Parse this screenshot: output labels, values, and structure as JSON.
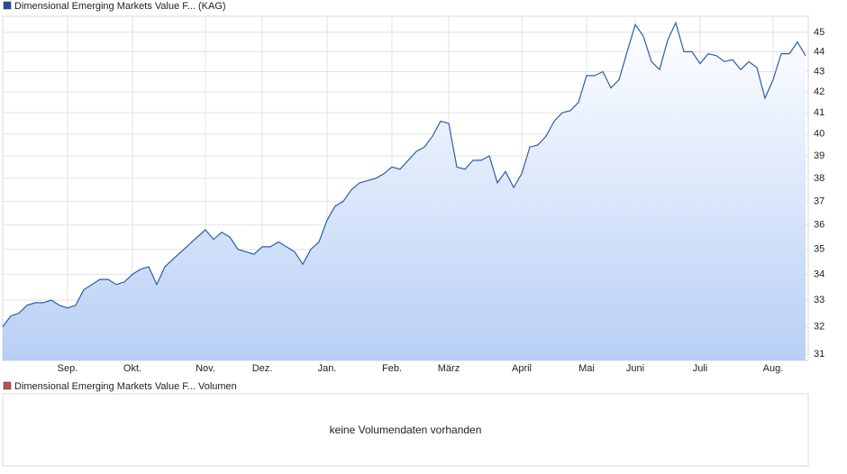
{
  "chart_data": [
    {
      "type": "line",
      "legend_label": "Dimensional Emerging Markets Value F... (KAG)",
      "legend_color": "#1f4e9b",
      "log_scale": true,
      "grid": true,
      "categories": [
        null,
        null,
        null,
        null,
        null,
        null,
        null,
        null,
        "Sep.",
        null,
        null,
        null,
        null,
        null,
        null,
        null,
        "Okt.",
        null,
        null,
        null,
        null,
        null,
        null,
        null,
        null,
        "Nov.",
        null,
        null,
        null,
        null,
        null,
        null,
        "Dez.",
        null,
        null,
        null,
        null,
        null,
        null,
        null,
        "Jan.",
        null,
        null,
        null,
        null,
        null,
        null,
        null,
        "Feb.",
        null,
        null,
        null,
        null,
        null,
        null,
        "März",
        null,
        null,
        null,
        null,
        null,
        null,
        null,
        null,
        "April",
        null,
        null,
        null,
        null,
        null,
        null,
        null,
        "Mai",
        null,
        null,
        null,
        null,
        null,
        "Juni",
        null,
        null,
        null,
        null,
        null,
        null,
        null,
        "Juli",
        null,
        null,
        null,
        null,
        null,
        null,
        null,
        null,
        "Aug.",
        null,
        null,
        null,
        null
      ],
      "series": [
        {
          "color": "#2a5db0",
          "values": [
            32.0,
            32.4,
            32.5,
            32.8,
            32.9,
            32.9,
            33.0,
            32.8,
            32.7,
            32.8,
            33.4,
            33.6,
            33.8,
            33.8,
            33.6,
            33.7,
            34.0,
            34.2,
            34.3,
            33.6,
            34.3,
            34.6,
            34.9,
            35.2,
            35.5,
            35.8,
            35.4,
            35.7,
            35.5,
            35.0,
            34.9,
            34.8,
            35.1,
            35.1,
            35.3,
            35.1,
            34.9,
            34.4,
            35.0,
            35.3,
            36.2,
            36.8,
            37.0,
            37.5,
            37.8,
            37.9,
            38.0,
            38.2,
            38.5,
            38.4,
            38.8,
            39.2,
            39.4,
            39.9,
            40.6,
            40.5,
            38.5,
            38.4,
            38.8,
            38.8,
            39.0,
            37.8,
            38.3,
            37.6,
            38.2,
            39.4,
            39.5,
            39.9,
            40.6,
            41.0,
            41.1,
            41.5,
            42.8,
            42.8,
            43.0,
            42.2,
            42.6,
            44.0,
            45.4,
            44.8,
            43.5,
            43.1,
            44.6,
            45.5,
            44.0,
            44.0,
            43.4,
            43.9,
            43.8,
            43.5,
            43.6,
            43.1,
            43.5,
            43.2,
            41.7,
            42.6,
            43.9,
            43.9,
            44.5,
            43.8
          ]
        }
      ],
      "ylim": [
        30.77,
        45.85
      ],
      "yticks": [
        31,
        32,
        33,
        34,
        35,
        36,
        37,
        38,
        39,
        40,
        41,
        42,
        43,
        44,
        45
      ]
    },
    {
      "type": "empty",
      "legend_label": "Dimensional Emerging Markets Value F... Volumen",
      "legend_color": "#c0504d",
      "message": "keine Volumendaten vorhanden"
    }
  ]
}
